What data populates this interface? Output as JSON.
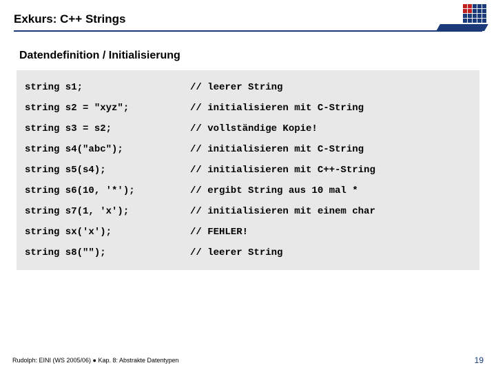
{
  "header": {
    "title": "Exkurs: C++ Strings"
  },
  "subtitle": "Datendefinition / Initialisierung",
  "code": {
    "rows": [
      {
        "left": "string s1;",
        "right": "// leerer String"
      },
      {
        "left": "string s2 = \"xyz\";",
        "right": "// initialisieren mit C-String"
      },
      {
        "left": "string s3 = s2;",
        "right": "// vollständige Kopie!"
      },
      {
        "left": "string s4(\"abc\");",
        "right": "// initialisieren mit C-String"
      },
      {
        "left": "string s5(s4);",
        "right": "// initialisieren mit C++-String"
      },
      {
        "left": "string s6(10, '*');",
        "right": "// ergibt String aus 10 mal *"
      },
      {
        "left": "string s7(1, 'x');",
        "right": "// initialisieren mit einem char"
      },
      {
        "left": "string sx('x');",
        "right": "// FEHLER!"
      },
      {
        "left": "string s8(\"\");",
        "right": "// leerer String"
      }
    ]
  },
  "footer": {
    "left": "Rudolph: EINI (WS 2005/06) ● Kap. 8: Abstrakte Datentypen",
    "page": "19"
  },
  "colors": {
    "accent": "#1a3a7a",
    "code_bg": "#e8e8e8",
    "logo_red": "#c02020"
  }
}
